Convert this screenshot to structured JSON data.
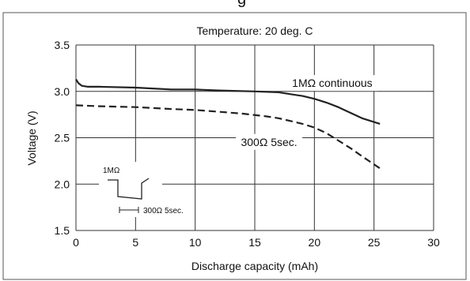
{
  "page_header_fragment": "g",
  "chart_data": {
    "type": "line",
    "title": "Temperature: 20 deg. C",
    "xlabel": "Discharge capacity (mAh)",
    "ylabel": "Voltage (V)",
    "xlim": [
      0,
      30
    ],
    "ylim": [
      1.5,
      3.5
    ],
    "x_ticks": [
      "0",
      "5",
      "10",
      "15",
      "20",
      "25",
      "30"
    ],
    "y_ticks": [
      "1.5",
      "2.0",
      "2.5",
      "3.0",
      "3.5"
    ],
    "grid": true,
    "series": [
      {
        "name": "1MΩ continuous",
        "style": "solid",
        "color": "#222222",
        "x": [
          0,
          0.2,
          0.5,
          1,
          2,
          5,
          8,
          10,
          12,
          15,
          17,
          18,
          19,
          20,
          21,
          22,
          23,
          24,
          25.5
        ],
        "y": [
          3.13,
          3.09,
          3.06,
          3.05,
          3.05,
          3.04,
          3.02,
          3.02,
          3.01,
          3.0,
          2.99,
          2.97,
          2.95,
          2.92,
          2.88,
          2.83,
          2.77,
          2.71,
          2.65
        ]
      },
      {
        "name": "300Ω 5sec.",
        "style": "dashed",
        "color": "#222222",
        "x": [
          0,
          2,
          5,
          8,
          10,
          12,
          14,
          16,
          17,
          18,
          19,
          20,
          21,
          22,
          23,
          24,
          25.5
        ],
        "y": [
          2.85,
          2.84,
          2.83,
          2.81,
          2.8,
          2.78,
          2.76,
          2.73,
          2.71,
          2.68,
          2.65,
          2.61,
          2.55,
          2.47,
          2.39,
          2.3,
          2.17
        ]
      }
    ],
    "annotations": {
      "solid_label": "1MΩ continuous",
      "dashed_label": "300Ω 5sec.",
      "inset_top_label": "1MΩ",
      "inset_bottom_label": "300Ω 5sec."
    }
  }
}
